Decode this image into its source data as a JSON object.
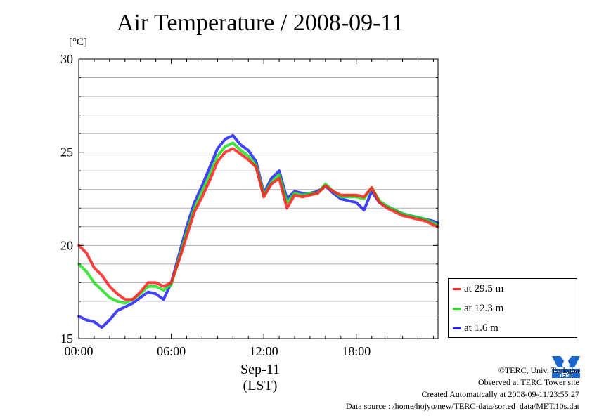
{
  "title": "Air Temperature / 2008-09-11",
  "credits": {
    "copyright": "©TERC, Univ. Tsukuba",
    "site": "Observed at TERC Tower site",
    "created": "Created Automatically at 2008-09-11/23:55:27",
    "source": "Data source : /home/hojyo/new/TERC-data/sorted_data/MET.10s.dat"
  },
  "logo_text": "TERC",
  "chart_data": {
    "type": "line",
    "title": "Air Temperature / 2008-09-11",
    "ylabel": "[°C]",
    "xlabel_date": "Sep-11",
    "xlabel_zone": "(LST)",
    "x_ticks": [
      "00:00",
      "06:00",
      "12:00",
      "18:00"
    ],
    "x_tick_hours": [
      0,
      6,
      12,
      18
    ],
    "xlim_hours": [
      0,
      23.3
    ],
    "y_ticks": [
      "15",
      "20",
      "25",
      "30"
    ],
    "y_tick_values": [
      15,
      20,
      25,
      30
    ],
    "ylim": [
      15,
      30
    ],
    "grid": "horizontal",
    "legend_position": "bottom-right, outside plot",
    "x_hours": [
      0,
      0.5,
      1,
      1.5,
      2,
      2.5,
      3,
      3.5,
      4,
      4.5,
      5,
      5.5,
      6,
      6.5,
      7,
      7.5,
      8,
      8.5,
      9,
      9.5,
      10,
      10.5,
      11,
      11.5,
      12,
      12.5,
      13,
      13.5,
      14,
      14.5,
      15,
      15.5,
      16,
      16.5,
      17,
      17.5,
      18,
      18.5,
      19,
      19.5,
      20,
      20.5,
      21,
      21.5,
      22,
      22.5,
      23,
      23.3
    ],
    "series": [
      {
        "name": "at 29.5 m",
        "color": "#ff2020",
        "values": [
          20.0,
          19.6,
          18.8,
          18.4,
          17.8,
          17.4,
          17.1,
          17.1,
          17.5,
          18.0,
          18.0,
          17.8,
          18.0,
          19.2,
          20.5,
          21.8,
          22.6,
          23.5,
          24.5,
          25.0,
          25.2,
          24.9,
          24.6,
          24.2,
          22.6,
          23.3,
          23.6,
          22.0,
          22.7,
          22.6,
          22.7,
          22.8,
          23.2,
          22.9,
          22.7,
          22.7,
          22.7,
          22.6,
          23.1,
          22.3,
          22.0,
          21.8,
          21.6,
          21.5,
          21.4,
          21.3,
          21.1,
          21.0
        ]
      },
      {
        "name": "at 12.3 m",
        "color": "#20e020",
        "values": [
          19.0,
          18.6,
          18.0,
          17.6,
          17.2,
          17.0,
          16.9,
          17.1,
          17.4,
          17.8,
          17.8,
          17.6,
          17.9,
          19.3,
          20.7,
          22.0,
          22.9,
          23.8,
          24.8,
          25.3,
          25.5,
          25.1,
          24.8,
          24.3,
          22.7,
          23.4,
          23.8,
          22.3,
          22.8,
          22.7,
          22.8,
          22.8,
          23.3,
          22.9,
          22.6,
          22.6,
          22.6,
          22.5,
          23.1,
          22.4,
          22.1,
          21.9,
          21.7,
          21.6,
          21.5,
          21.4,
          21.2,
          21.1
        ]
      },
      {
        "name": "at 1.6 m",
        "color": "#2020ff",
        "values": [
          16.2,
          16.0,
          15.9,
          15.6,
          16.0,
          16.5,
          16.7,
          16.9,
          17.2,
          17.5,
          17.4,
          17.1,
          18.0,
          19.5,
          21.0,
          22.3,
          23.2,
          24.2,
          25.2,
          25.7,
          25.9,
          25.4,
          25.1,
          24.5,
          22.8,
          23.6,
          24.0,
          22.5,
          22.9,
          22.8,
          22.8,
          22.9,
          23.2,
          22.8,
          22.5,
          22.4,
          22.3,
          21.9,
          22.9,
          22.3,
          22.1,
          21.9,
          21.7,
          21.6,
          21.5,
          21.4,
          21.3,
          21.2
        ]
      }
    ]
  }
}
